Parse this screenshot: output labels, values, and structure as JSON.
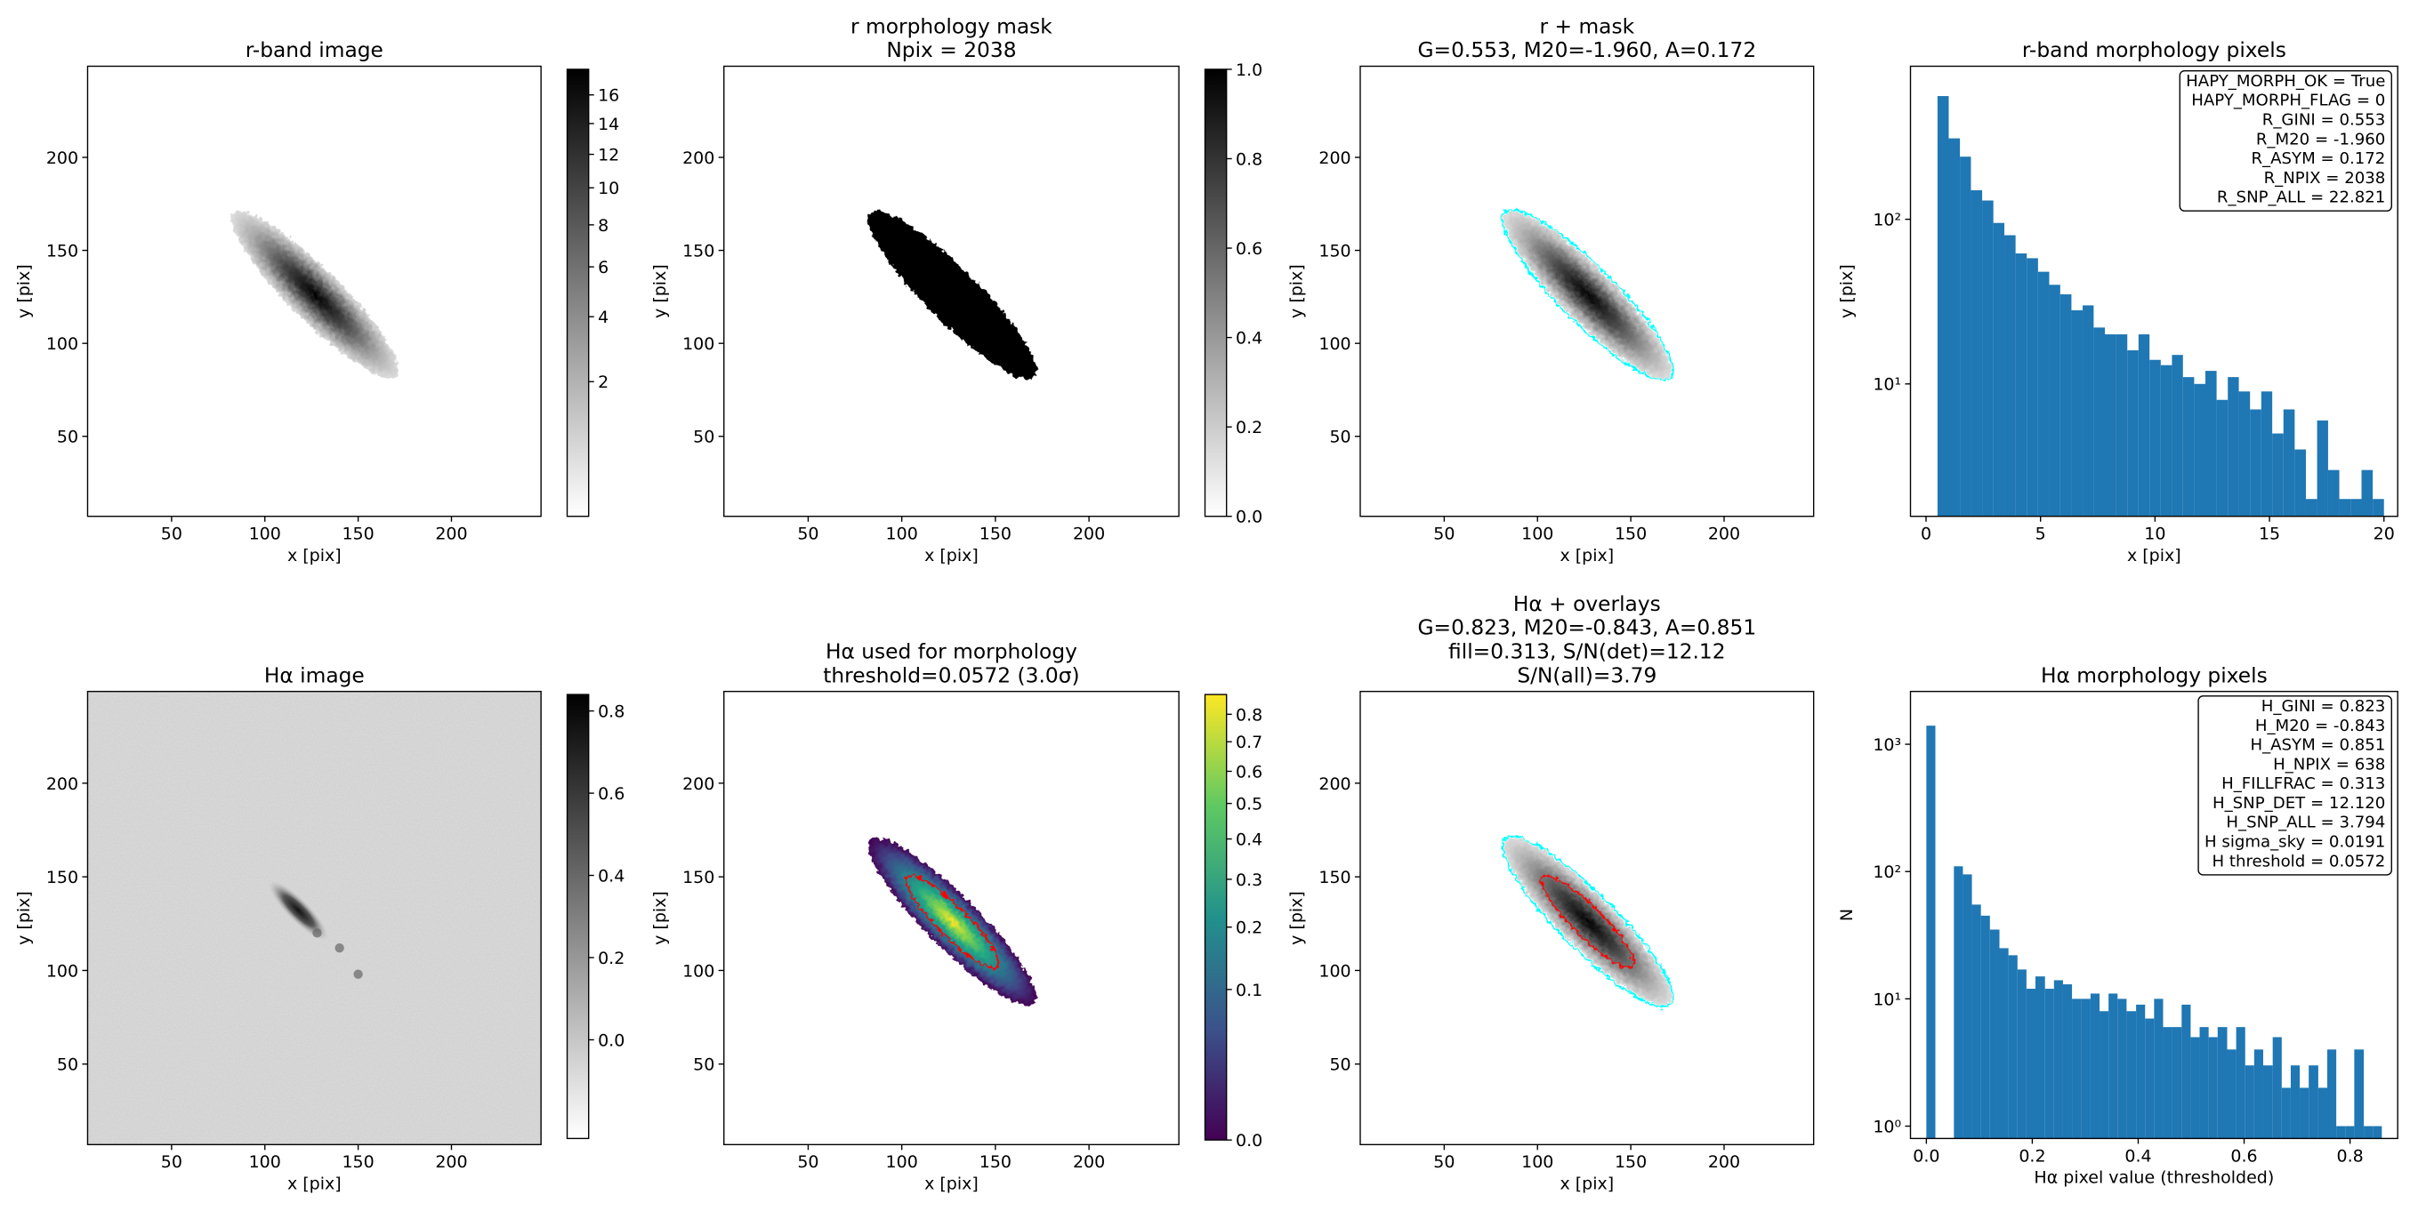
{
  "chart_data": [
    {
      "type": "image",
      "title": [
        "r-band image"
      ],
      "xlabel": "x [pix]",
      "ylabel": "y [pix]",
      "xlim": [
        5,
        248
      ],
      "ylim": [
        7,
        249
      ],
      "xticks": [
        50,
        100,
        150,
        200
      ],
      "yticks": [
        50,
        100,
        150,
        200
      ],
      "cmap": "gray_r",
      "colorbar": {
        "lim": [
          0.04,
          17.9
        ],
        "scale": "sqrt",
        "ticks": [
          2,
          4,
          6,
          8,
          10,
          12,
          14,
          16
        ]
      }
    },
    {
      "type": "image",
      "title": [
        "r morphology mask",
        "Npix = 2038"
      ],
      "xlabel": "x [pix]",
      "ylabel": "y [pix]",
      "xlim": [
        5,
        248
      ],
      "ylim": [
        7,
        249
      ],
      "xticks": [
        50,
        100,
        150,
        200
      ],
      "yticks": [
        50,
        100,
        150,
        200
      ],
      "cmap": "gray_r",
      "colorbar": {
        "lim": [
          0,
          1
        ],
        "scale": "linear",
        "ticks": [
          {
            "value": 0,
            "label": "0.0"
          },
          {
            "value": 0.2,
            "label": "0.2"
          },
          {
            "value": 0.4,
            "label": "0.4"
          },
          {
            "value": 0.6,
            "label": "0.6"
          },
          {
            "value": 0.8,
            "label": "0.8"
          },
          {
            "value": 1,
            "label": "1.0"
          }
        ]
      }
    },
    {
      "type": "image",
      "title": [
        "r + mask",
        "G=0.553, M20=-1.960, A=0.172"
      ],
      "xlabel": "x [pix]",
      "ylabel": "y [pix]",
      "xlim": [
        5,
        248
      ],
      "ylim": [
        7,
        249
      ],
      "xticks": [
        50,
        100,
        150,
        200
      ],
      "yticks": [
        50,
        100,
        150,
        200
      ],
      "cmap": "gray_r",
      "contour_colors": [
        "#00ffff"
      ]
    },
    {
      "type": "histogram",
      "title": [
        "r-band morphology pixels"
      ],
      "xlabel": "x [pix]",
      "ylabel": "y [pix]",
      "color": "#1f77b4",
      "log_y": true,
      "xlim": [
        -0.68,
        20.6
      ],
      "ylim": [
        1.57,
        850
      ],
      "xticks": [
        0,
        5,
        10,
        15,
        20
      ],
      "yticks": [
        {
          "value": 10,
          "label": "10¹"
        },
        {
          "value": 100,
          "label": "10²"
        }
      ],
      "bins": [
        0.5,
        0.99,
        1.48,
        1.96,
        2.45,
        2.94,
        3.42,
        3.91,
        4.4,
        4.89,
        5.38,
        5.86,
        6.35,
        6.84,
        7.32,
        7.81,
        8.3,
        8.79,
        9.28,
        9.76,
        10.25,
        10.74,
        11.22,
        11.71,
        12.2,
        12.69,
        13.18,
        13.66,
        14.15,
        14.64,
        15.12,
        15.61,
        16.1,
        16.59,
        17.08,
        17.56,
        18.05,
        18.54,
        19.02,
        19.51,
        20.0
      ],
      "values": [
        560,
        310,
        240,
        150,
        130,
        95,
        80,
        62,
        58,
        48,
        40,
        35,
        28,
        30,
        22,
        20,
        20,
        16,
        20,
        14,
        13,
        15,
        11,
        10,
        12,
        8,
        11,
        9,
        7,
        9,
        5,
        7,
        4,
        2,
        6,
        3,
        2,
        2,
        3,
        2
      ],
      "annotation": [
        "HAPY_MORPH_OK = True",
        "HAPY_MORPH_FLAG = 0",
        "R_GINI = 0.553",
        "R_M20 = -1.960",
        "R_ASYM = 0.172",
        "R_NPIX = 2038",
        "R_SNP_ALL = 22.821"
      ]
    },
    {
      "type": "image",
      "title": [
        "Hα image"
      ],
      "xlabel": "x [pix]",
      "ylabel": "y [pix]",
      "xlim": [
        5,
        248
      ],
      "ylim": [
        7,
        249
      ],
      "xticks": [
        50,
        100,
        150,
        200
      ],
      "yticks": [
        50,
        100,
        150,
        200
      ],
      "cmap": "gray_r",
      "colorbar": {
        "lim": [
          -0.24,
          0.84
        ],
        "scale": "linear",
        "ticks": [
          {
            "value": 0,
            "label": "0.0"
          },
          {
            "value": 0.2,
            "label": "0.2"
          },
          {
            "value": 0.4,
            "label": "0.4"
          },
          {
            "value": 0.6,
            "label": "0.6"
          },
          {
            "value": 0.8,
            "label": "0.8"
          }
        ]
      }
    },
    {
      "type": "image",
      "title": [
        "Hα used for morphology",
        "threshold=0.0572 (3.0σ)"
      ],
      "xlabel": "x [pix]",
      "ylabel": "y [pix]",
      "xlim": [
        5,
        248
      ],
      "ylim": [
        7,
        249
      ],
      "xticks": [
        50,
        100,
        150,
        200
      ],
      "yticks": [
        50,
        100,
        150,
        200
      ],
      "cmap": "viridis",
      "contour_colors": [
        "#ff0000"
      ],
      "colorbar": {
        "lim": [
          0,
          0.876
        ],
        "scale": "sqrt",
        "ticks": [
          {
            "value": 0,
            "label": "0.0"
          },
          {
            "value": 0.1,
            "label": "0.1"
          },
          {
            "value": 0.2,
            "label": "0.2"
          },
          {
            "value": 0.3,
            "label": "0.3"
          },
          {
            "value": 0.4,
            "label": "0.4"
          },
          {
            "value": 0.5,
            "label": "0.5"
          },
          {
            "value": 0.6,
            "label": "0.6"
          },
          {
            "value": 0.7,
            "label": "0.7"
          },
          {
            "value": 0.8,
            "label": "0.8"
          }
        ]
      }
    },
    {
      "type": "image",
      "title": [
        "Hα + overlays",
        "G=0.823, M20=-0.843, A=0.851",
        "fill=0.313, S/N(det)=12.12",
        "S/N(all)=3.79"
      ],
      "xlabel": "x [pix]",
      "ylabel": "y [pix]",
      "xlim": [
        5,
        248
      ],
      "ylim": [
        7,
        249
      ],
      "xticks": [
        50,
        100,
        150,
        200
      ],
      "yticks": [
        50,
        100,
        150,
        200
      ],
      "cmap": "gray_r",
      "contour_colors": [
        "#00ffff",
        "#ff0000"
      ]
    },
    {
      "type": "histogram",
      "title": [
        "Hα morphology pixels"
      ],
      "xlabel": "Hα pixel value (thresholded)",
      "ylabel": "N",
      "color": "#1f77b4",
      "log_y": true,
      "xlim": [
        -0.03,
        0.89
      ],
      "ylim": [
        0.8,
        2600
      ],
      "xticks": [
        {
          "value": 0,
          "label": "0.0"
        },
        {
          "value": 0.2,
          "label": "0.2"
        },
        {
          "value": 0.4,
          "label": "0.4"
        },
        {
          "value": 0.6,
          "label": "0.6"
        },
        {
          "value": 0.8,
          "label": "0.8"
        }
      ],
      "yticks": [
        {
          "value": 1,
          "label": "10⁰"
        },
        {
          "value": 10,
          "label": "10¹"
        },
        {
          "value": 100,
          "label": "10²"
        },
        {
          "value": 1000,
          "label": "10³"
        }
      ],
      "bins": [
        0,
        0.017,
        0.034,
        0.052,
        0.069,
        0.086,
        0.103,
        0.12,
        0.138,
        0.155,
        0.172,
        0.189,
        0.206,
        0.224,
        0.241,
        0.258,
        0.275,
        0.292,
        0.31,
        0.327,
        0.344,
        0.361,
        0.378,
        0.396,
        0.413,
        0.43,
        0.447,
        0.464,
        0.482,
        0.499,
        0.516,
        0.533,
        0.55,
        0.568,
        0.585,
        0.602,
        0.619,
        0.636,
        0.654,
        0.671,
        0.688,
        0.705,
        0.722,
        0.74,
        0.757,
        0.774,
        0.791,
        0.808,
        0.826,
        0.843,
        0.86
      ],
      "values": [
        1400,
        0,
        0,
        110,
        95,
        55,
        45,
        35,
        25,
        22,
        17,
        12,
        15,
        12,
        14,
        13,
        10,
        10,
        11,
        8,
        11,
        10,
        8,
        9,
        7,
        10,
        6,
        6,
        9,
        5,
        6,
        5,
        6,
        4,
        6,
        3,
        4,
        3,
        5,
        2,
        3,
        2,
        3,
        2,
        4,
        1,
        1,
        4,
        1,
        1
      ],
      "annotation": [
        "H_GINI = 0.823",
        "H_M20 = -0.843",
        "H_ASYM = 0.851",
        "H_NPIX = 638",
        "H_FILLFRAC = 0.313",
        "H_SNP_DET = 12.120",
        "H_SNP_ALL = 3.794",
        "H sigma_sky = 0.0191",
        "H threshold = 0.0572"
      ]
    }
  ]
}
